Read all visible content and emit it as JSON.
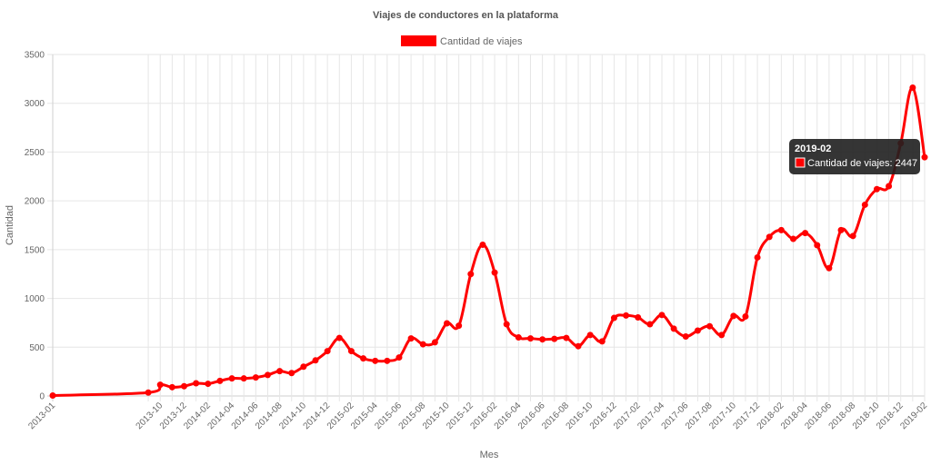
{
  "chart_data": {
    "type": "line",
    "title": "Viajes de conductores en la plataforma",
    "xlabel": "Mes",
    "ylabel": "Cantidad",
    "ylim": [
      0,
      3500
    ],
    "yticks": [
      0,
      500,
      1000,
      1500,
      2000,
      2500,
      3000,
      3500
    ],
    "grid": true,
    "legend_position": "top-center",
    "color": "#ff0000",
    "x": [
      "2013-01",
      "2013-09",
      "2013-10",
      "2013-11",
      "2013-12",
      "2014-01",
      "2014-02",
      "2014-03",
      "2014-04",
      "2014-05",
      "2014-06",
      "2014-07",
      "2014-08",
      "2014-09",
      "2014-10",
      "2014-11",
      "2014-12",
      "2015-01",
      "2015-02",
      "2015-03",
      "2015-04",
      "2015-05",
      "2015-06",
      "2015-07",
      "2015-08",
      "2015-09",
      "2015-10",
      "2015-11",
      "2015-12",
      "2016-01",
      "2016-02",
      "2016-03",
      "2016-04",
      "2016-05",
      "2016-06",
      "2016-07",
      "2016-08",
      "2016-09",
      "2016-10",
      "2016-11",
      "2016-12",
      "2017-01",
      "2017-02",
      "2017-03",
      "2017-04",
      "2017-05",
      "2017-06",
      "2017-07",
      "2017-08",
      "2017-09",
      "2017-10",
      "2017-11",
      "2017-12",
      "2018-01",
      "2018-02",
      "2018-03",
      "2018-04",
      "2018-05",
      "2018-06",
      "2018-07",
      "2018-08",
      "2018-09",
      "2018-10",
      "2018-11",
      "2018-12",
      "2019-01",
      "2019-02"
    ],
    "series": [
      {
        "name": "Cantidad de viajes",
        "values": [
          5,
          35,
          115,
          90,
          100,
          130,
          125,
          155,
          180,
          180,
          190,
          215,
          255,
          235,
          300,
          365,
          460,
          595,
          460,
          385,
          360,
          360,
          395,
          590,
          530,
          550,
          745,
          720,
          1250,
          1550,
          1265,
          735,
          600,
          590,
          580,
          585,
          595,
          510,
          625,
          560,
          800,
          825,
          805,
          735,
          830,
          690,
          610,
          670,
          715,
          625,
          820,
          815,
          1420,
          1630,
          1700,
          1610,
          1670,
          1545,
          1310,
          1700,
          1640,
          1960,
          2120,
          2150,
          2590,
          3160,
          2447
        ]
      }
    ],
    "tooltip": {
      "title": "2019-02",
      "label": "Cantidad de viajes: 2447"
    }
  }
}
